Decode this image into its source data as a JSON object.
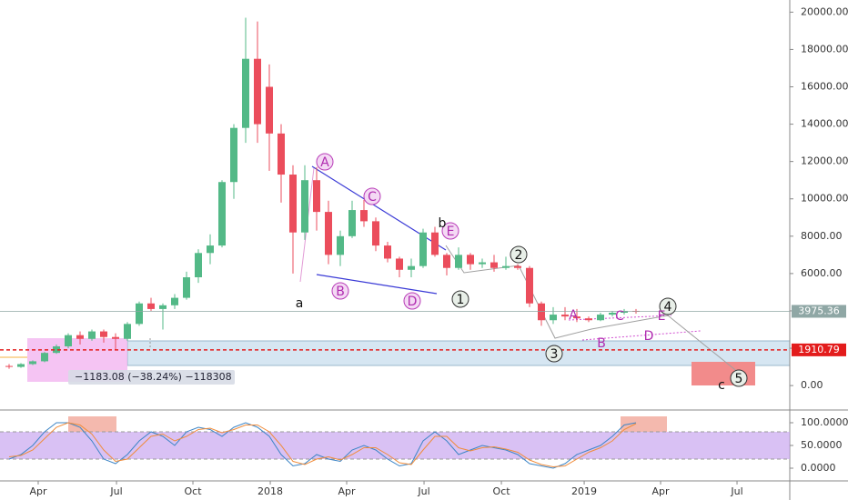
{
  "chart_data": {
    "type": "candlestick",
    "candles": [
      [
        1050,
        1150,
        900,
        1000
      ],
      [
        1000,
        1200,
        950,
        1150
      ],
      [
        1150,
        1350,
        1100,
        1300
      ],
      [
        1300,
        1800,
        1250,
        1750
      ],
      [
        1750,
        2200,
        1700,
        2100
      ],
      [
        2100,
        2800,
        2000,
        2700
      ],
      [
        2700,
        2900,
        2200,
        2500
      ],
      [
        2500,
        3000,
        2400,
        2900
      ],
      [
        2900,
        3000,
        2300,
        2600
      ],
      [
        2600,
        2800,
        1900,
        2500
      ],
      [
        2500,
        3400,
        2400,
        3300
      ],
      [
        3300,
        4500,
        3200,
        4400
      ],
      [
        4400,
        4700,
        4000,
        4100
      ],
      [
        4100,
        4400,
        3000,
        4300
      ],
      [
        4300,
        4900,
        4100,
        4700
      ],
      [
        4700,
        6100,
        4600,
        5800
      ],
      [
        5800,
        7300,
        5500,
        7100
      ],
      [
        7100,
        8100,
        6500,
        7500
      ],
      [
        7500,
        11000,
        7400,
        10900
      ],
      [
        10900,
        14000,
        10000,
        13800
      ],
      [
        13800,
        19700,
        13000,
        17500
      ],
      [
        17500,
        19500,
        13000,
        14000
      ],
      [
        16000,
        17200,
        11500,
        13500
      ],
      [
        13500,
        14000,
        9800,
        11300
      ],
      [
        11300,
        11800,
        6000,
        8200
      ],
      [
        8200,
        11800,
        7800,
        11000
      ],
      [
        11000,
        11700,
        8300,
        9300
      ],
      [
        9300,
        9900,
        6500,
        7000
      ],
      [
        7000,
        8300,
        6400,
        8000
      ],
      [
        8000,
        9900,
        7900,
        9400
      ],
      [
        9400,
        9950,
        8500,
        8800
      ],
      [
        8800,
        9000,
        7200,
        7500
      ],
      [
        7500,
        7700,
        6600,
        6800
      ],
      [
        6800,
        6900,
        5800,
        6200
      ],
      [
        6200,
        6800,
        5800,
        6400
      ],
      [
        6400,
        8400,
        6300,
        8200
      ],
      [
        8200,
        8500,
        6900,
        7000
      ],
      [
        7000,
        7100,
        5900,
        6300
      ],
      [
        6300,
        7400,
        6200,
        7000
      ],
      [
        7000,
        7100,
        6200,
        6500
      ],
      [
        6500,
        6800,
        6300,
        6600
      ],
      [
        6600,
        7000,
        6100,
        6300
      ],
      [
        6300,
        6900,
        6200,
        6400
      ],
      [
        6400,
        6500,
        6200,
        6300
      ],
      [
        6300,
        6400,
        4200,
        4400
      ],
      [
        4400,
        4500,
        3200,
        3500
      ],
      [
        3500,
        4200,
        3300,
        3800
      ],
      [
        3800,
        4200,
        3500,
        3700
      ],
      [
        3700,
        4100,
        3400,
        3600
      ],
      [
        3600,
        3700,
        3400,
        3500
      ],
      [
        3500,
        3900,
        3450,
        3800
      ],
      [
        3800,
        4000,
        3700,
        3900
      ],
      [
        3900,
        4100,
        3800,
        4000
      ],
      [
        4000,
        4100,
        3850,
        3975.36
      ]
    ],
    "up_color": "#53b987",
    "down_color": "#eb4d5c",
    "xlim": [
      -0.769,
      66
    ],
    "xticks": [
      {
        "value": 2.46,
        "label": "Apr"
      },
      {
        "value": 9.08,
        "label": "Jul"
      },
      {
        "value": 15.54,
        "label": "Oct"
      },
      {
        "value": 22.08,
        "label": "2018"
      },
      {
        "value": 28.54,
        "label": "Apr"
      },
      {
        "value": 35.08,
        "label": "Jul"
      },
      {
        "value": 41.62,
        "label": "Oct"
      },
      {
        "value": 48.62,
        "label": "2019"
      },
      {
        "value": 55.08,
        "label": "Apr"
      },
      {
        "value": 61.54,
        "label": "Jul"
      }
    ],
    "ylim": [
      -1260,
      20650
    ],
    "yticks": [
      {
        "value": 0,
        "label": "0.00"
      },
      {
        "value": 2000,
        "label": "2000.00"
      },
      {
        "value": 4000,
        "label": "4000.00"
      },
      {
        "value": 6000,
        "label": "6000.00"
      },
      {
        "value": 8000,
        "label": "8000.00"
      },
      {
        "value": 10000,
        "label": "10000.00"
      },
      {
        "value": 12000,
        "label": "12000.00"
      },
      {
        "value": 14000,
        "label": "14000.00"
      },
      {
        "value": 16000,
        "label": "16000.00"
      },
      {
        "value": 18000,
        "label": "18000.00"
      },
      {
        "value": 20000,
        "label": "20000.00"
      }
    ],
    "price_lines": [
      {
        "value": 3975.36,
        "label": "3975.36",
        "color": "#8fa7a5"
      },
      {
        "value": 1910.79,
        "label": "1910.79",
        "color": "#e31c1c"
      }
    ],
    "measure_label": "−1183.08 (−38.24%) −118308",
    "annotations": [
      "A",
      "C",
      "E",
      "B",
      "D",
      "a",
      "b",
      "1",
      "2",
      "3",
      "4",
      "5",
      "c",
      "A",
      "C",
      "E",
      "B",
      "D"
    ],
    "indicator": {
      "type": "line",
      "ylim": [
        -24,
        126
      ],
      "yticks": [
        {
          "value": 100,
          "label": "100.0000"
        },
        {
          "value": 50,
          "label": "50.0000"
        },
        {
          "value": 0,
          "label": "0.0000"
        }
      ],
      "series": [
        {
          "color": "#3d85c6",
          "values": [
            20,
            30,
            50,
            80,
            100,
            100,
            90,
            60,
            20,
            10,
            30,
            60,
            80,
            70,
            50,
            80,
            90,
            85,
            70,
            90,
            100,
            90,
            70,
            30,
            5,
            10,
            30,
            20,
            15,
            40,
            50,
            40,
            20,
            5,
            10,
            60,
            80,
            60,
            30,
            40,
            50,
            45,
            40,
            30,
            10,
            5,
            0,
            10,
            30,
            40,
            50,
            70,
            95,
            100
          ]
        },
        {
          "color": "#f08c3b",
          "values": [
            25,
            28,
            40,
            65,
            90,
            100,
            95,
            75,
            40,
            15,
            20,
            45,
            70,
            75,
            60,
            70,
            85,
            88,
            78,
            85,
            95,
            95,
            80,
            50,
            15,
            8,
            20,
            25,
            18,
            30,
            45,
            45,
            30,
            12,
            8,
            40,
            70,
            70,
            45,
            38,
            45,
            47,
            42,
            35,
            18,
            8,
            3,
            5,
            20,
            35,
            45,
            60,
            85,
            98
          ]
        }
      ]
    }
  }
}
